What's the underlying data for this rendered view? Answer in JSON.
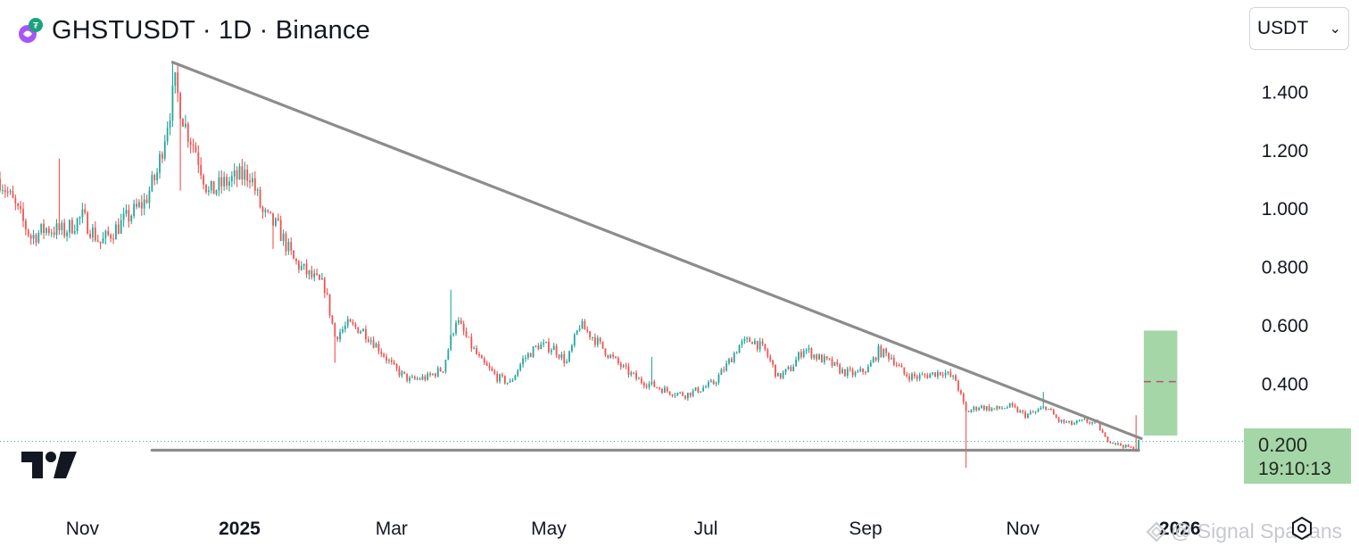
{
  "header": {
    "title": "GHSTUSDT · 1D · Binance",
    "logo_icon": "ghst-token-icon"
  },
  "currency_select": {
    "value": "USDT",
    "icon": "chevron-down-icon"
  },
  "price_label": {
    "value": "0.200",
    "countdown": "19:10:13"
  },
  "watermark": {
    "text": "@ Signal Spartans",
    "icon": "diamond-logo-icon"
  },
  "colors": {
    "up": "#26a69a",
    "down": "#ef5350",
    "trendline": "#8c8c8c",
    "target_zone": "#a5d6a7",
    "target_line": "#c2185b"
  },
  "chart_data": {
    "type": "candlestick",
    "timeframe": "1D",
    "exchange": "Binance",
    "y_ticks": [
      "1.400",
      "1.200",
      "1.000",
      "0.800",
      "0.600",
      "0.400",
      "0.200"
    ],
    "x_ticks": [
      "Nov",
      "2025",
      "Mar",
      "May",
      "Jul",
      "Sep",
      "Nov",
      "2026"
    ],
    "ylim": [
      0.0,
      1.53
    ],
    "xlim": [
      "2024-09-30",
      "2026-01-21"
    ],
    "current_price": 0.2,
    "descending_trendline": {
      "from": [
        "2024-12-06",
        1.5
      ],
      "to": [
        "2025-12-17",
        0.21
      ]
    },
    "support_line": {
      "from": [
        "2024-11-28",
        0.17
      ],
      "to": [
        "2025-12-16",
        0.17
      ],
      "value": 0.17
    },
    "target_zone": {
      "from": "2025-12-18",
      "to": "2025-12-31",
      "low": 0.22,
      "high": 0.58,
      "mid": 0.405
    },
    "anchors": [
      [
        "2024-09-30",
        1.1
      ],
      [
        "2024-10-05",
        1.02
      ],
      [
        "2024-10-12",
        0.9
      ],
      [
        "2024-10-18",
        0.93
      ],
      [
        "2024-10-25",
        0.92
      ],
      [
        "2024-11-01",
        0.97
      ],
      [
        "2024-11-08",
        0.88
      ],
      [
        "2024-11-14",
        0.93
      ],
      [
        "2024-11-20",
        0.98
      ],
      [
        "2024-11-25",
        1.02
      ],
      [
        "2024-11-30",
        1.12
      ],
      [
        "2024-12-04",
        1.3
      ],
      [
        "2024-12-07",
        1.42
      ],
      [
        "2024-12-11",
        1.28
      ],
      [
        "2024-12-15",
        1.2
      ],
      [
        "2024-12-20",
        1.05
      ],
      [
        "2024-12-25",
        1.08
      ],
      [
        "2024-12-30",
        1.1
      ],
      [
        "2025-01-05",
        1.12
      ],
      [
        "2025-01-10",
        0.98
      ],
      [
        "2025-01-16",
        0.93
      ],
      [
        "2025-01-22",
        0.82
      ],
      [
        "2025-01-28",
        0.77
      ],
      [
        "2025-02-03",
        0.73
      ],
      [
        "2025-02-07",
        0.56
      ],
      [
        "2025-02-12",
        0.6
      ],
      [
        "2025-02-18",
        0.58
      ],
      [
        "2025-02-24",
        0.52
      ],
      [
        "2025-03-02",
        0.45
      ],
      [
        "2025-03-08",
        0.41
      ],
      [
        "2025-03-15",
        0.42
      ],
      [
        "2025-03-21",
        0.45
      ],
      [
        "2025-03-26",
        0.62
      ],
      [
        "2025-03-31",
        0.54
      ],
      [
        "2025-04-05",
        0.47
      ],
      [
        "2025-04-11",
        0.42
      ],
      [
        "2025-04-16",
        0.4
      ],
      [
        "2025-04-21",
        0.48
      ],
      [
        "2025-04-27",
        0.53
      ],
      [
        "2025-05-03",
        0.52
      ],
      [
        "2025-05-08",
        0.47
      ],
      [
        "2025-05-13",
        0.6
      ],
      [
        "2025-05-18",
        0.56
      ],
      [
        "2025-05-24",
        0.5
      ],
      [
        "2025-05-30",
        0.45
      ],
      [
        "2025-06-05",
        0.41
      ],
      [
        "2025-06-11",
        0.39
      ],
      [
        "2025-06-17",
        0.37
      ],
      [
        "2025-06-23",
        0.36
      ],
      [
        "2025-06-29",
        0.38
      ],
      [
        "2025-07-04",
        0.4
      ],
      [
        "2025-07-09",
        0.46
      ],
      [
        "2025-07-14",
        0.53
      ],
      [
        "2025-07-19",
        0.55
      ],
      [
        "2025-07-24",
        0.51
      ],
      [
        "2025-07-29",
        0.42
      ],
      [
        "2025-08-03",
        0.45
      ],
      [
        "2025-08-08",
        0.52
      ],
      [
        "2025-08-13",
        0.49
      ],
      [
        "2025-08-18",
        0.47
      ],
      [
        "2025-08-23",
        0.44
      ],
      [
        "2025-08-28",
        0.43
      ],
      [
        "2025-09-02",
        0.45
      ],
      [
        "2025-09-06",
        0.51
      ],
      [
        "2025-09-11",
        0.49
      ],
      [
        "2025-09-16",
        0.43
      ],
      [
        "2025-09-21",
        0.42
      ],
      [
        "2025-09-26",
        0.43
      ],
      [
        "2025-10-01",
        0.44
      ],
      [
        "2025-10-06",
        0.41
      ],
      [
        "2025-10-10",
        0.3
      ],
      [
        "2025-10-15",
        0.32
      ],
      [
        "2025-10-21",
        0.31
      ],
      [
        "2025-10-27",
        0.32
      ],
      [
        "2025-11-02",
        0.29
      ],
      [
        "2025-11-06",
        0.3
      ],
      [
        "2025-11-10",
        0.32
      ],
      [
        "2025-11-15",
        0.27
      ],
      [
        "2025-11-20",
        0.26
      ],
      [
        "2025-11-25",
        0.27
      ],
      [
        "2025-11-30",
        0.26
      ],
      [
        "2025-12-03",
        0.21
      ],
      [
        "2025-12-08",
        0.19
      ],
      [
        "2025-12-12",
        0.18
      ],
      [
        "2025-12-15",
        0.17
      ],
      [
        "2025-12-16",
        0.2
      ]
    ],
    "spikes": [
      {
        "date": "2024-10-23",
        "high": 1.17
      },
      {
        "date": "2024-12-06",
        "high": 1.5
      },
      {
        "date": "2024-12-09",
        "low": 1.06
      },
      {
        "date": "2025-01-14",
        "low": 0.86
      },
      {
        "date": "2025-01-04",
        "high": 1.15
      },
      {
        "date": "2025-02-07",
        "low": 0.47
      },
      {
        "date": "2025-03-24",
        "high": 0.72
      },
      {
        "date": "2025-06-10",
        "high": 0.49
      },
      {
        "date": "2025-10-10",
        "low": 0.11
      },
      {
        "date": "2025-11-09",
        "high": 0.37
      },
      {
        "date": "2025-12-15",
        "high": 0.29
      }
    ]
  }
}
